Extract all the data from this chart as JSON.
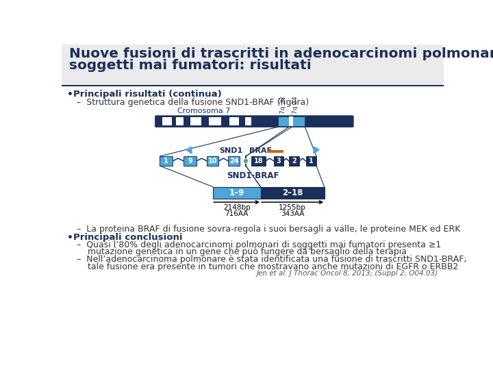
{
  "title_line1": "Nuove fusioni di trascritti in adenocarcinomi polmonari di",
  "title_line2": "soggetti mai fumatori: risultati",
  "title_color": "#1a2f5a",
  "bg_color": "#ffffff",
  "dark_blue": "#1a2f5a",
  "light_blue": "#4da6d8",
  "green_dot": "#3cb371",
  "orange_line": "#c86400",
  "bullet1_bold": "Principali risultati (continua)",
  "bullet1_sub": "–  Struttura genetica della fusione SND1-BRAF (figura)",
  "bullet2_line": "–  La proteina BRAF di fusione sovra-regola i suoi bersagli a valle, le proteine MEK ed ERK",
  "bullet3_bold": "Principali conclusioni",
  "bullet3_sub1": "–  Quasi l’80% degli adenocarcinomi polmonari di soggetti mai fumatori presenta ≥1",
  "bullet3_sub1b": "    mutazione genetica in un gene che può fungere da bersaglio della terapia",
  "bullet3_sub2": "–  Nell’adenocarcinoma polmonare è stata identificata una fusione di trascritti SND1-BRAF;",
  "bullet3_sub2b": "    tale fusione era presente in tumori che mostravano anche mutazioni di EGFR o ERBB2",
  "citation": "Jen et al. J Thorac Oncol 8, 2013; (Suppl 2; O04.03)"
}
